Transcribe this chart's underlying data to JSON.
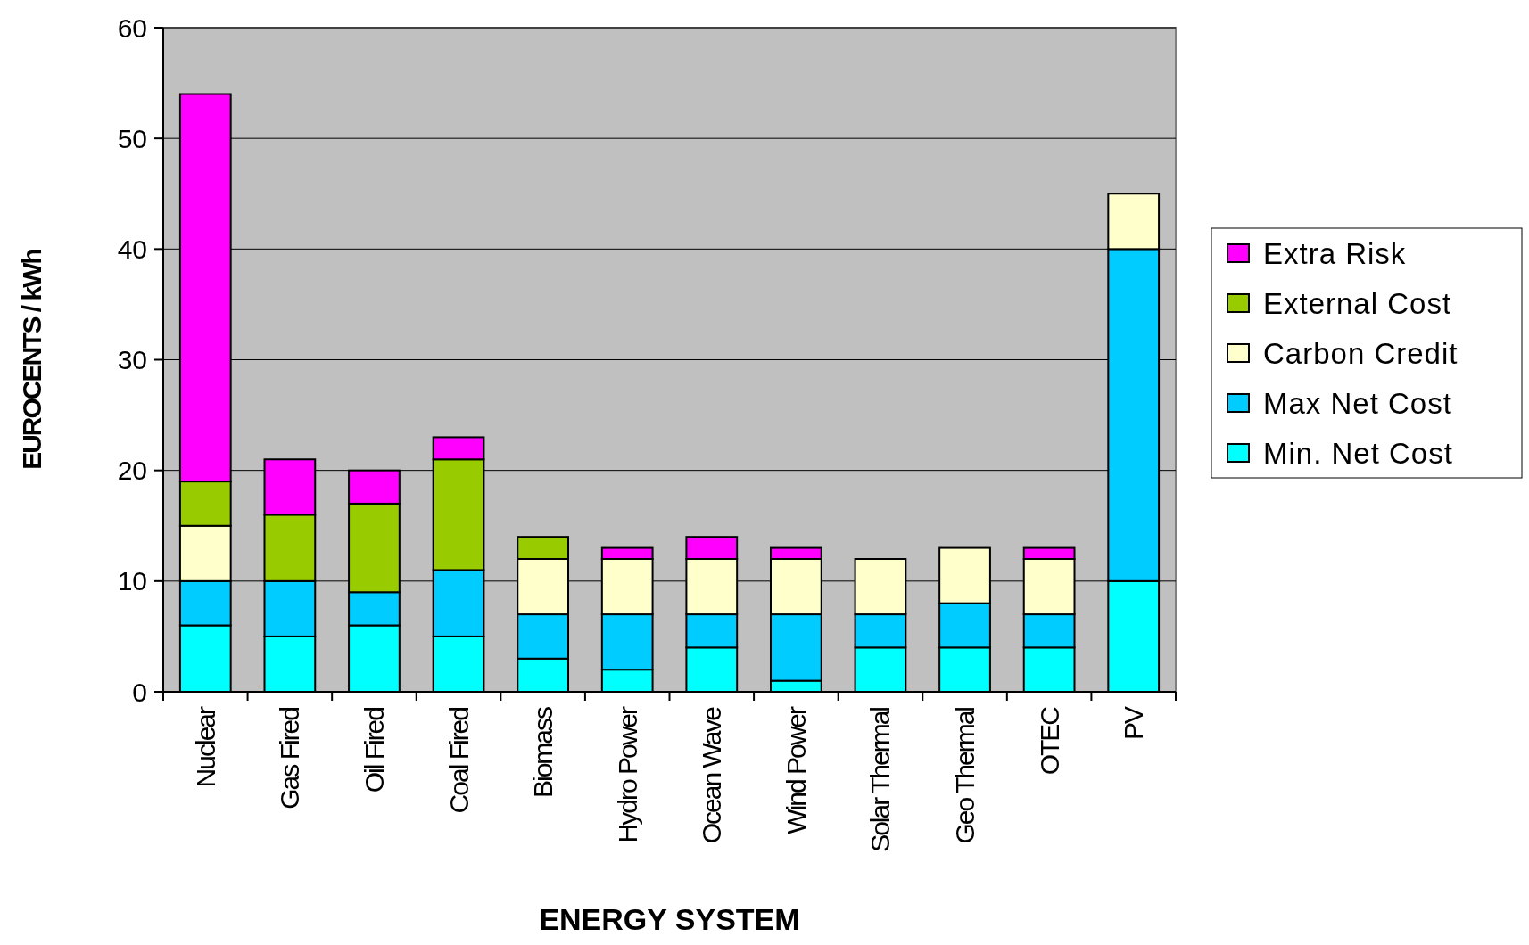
{
  "chart_data": {
    "type": "bar",
    "stacked": true,
    "xlabel": "ENERGY SYSTEM",
    "ylabel": "EUROCENTS / kWh",
    "categories": [
      "Nuclear",
      "Gas Fired",
      "Oil Fired",
      "Coal Fired",
      "Biomass",
      "Hydro Power",
      "Ocean Wave",
      "Wind Power",
      "Solar Thermal",
      "Geo Thermal",
      "OTEC",
      "PV"
    ],
    "series": [
      {
        "name": "Min. Net Cost",
        "color": "#00ffff",
        "values": [
          6,
          5,
          6,
          5,
          3,
          2,
          4,
          1,
          4,
          4,
          4,
          10
        ]
      },
      {
        "name": "Max Net Cost",
        "color": "#00ccff",
        "values": [
          4,
          5,
          3,
          6,
          4,
          5,
          3,
          6,
          3,
          4,
          3,
          30
        ]
      },
      {
        "name": "Carbon Credit",
        "color": "#ffffcc",
        "values": [
          5,
          null,
          null,
          null,
          5,
          5,
          5,
          5,
          5,
          5,
          5,
          5
        ]
      },
      {
        "name": "External Cost",
        "color": "#99cc00",
        "values": [
          4,
          6,
          8,
          10,
          2,
          null,
          null,
          null,
          null,
          null,
          null,
          null
        ]
      },
      {
        "name": "Extra Risk",
        "color": "#ff00ff",
        "values": [
          35,
          5,
          3,
          2,
          null,
          1,
          2,
          1,
          null,
          null,
          1,
          null
        ]
      }
    ],
    "ylim": [
      0,
      60
    ],
    "yticks": [
      0,
      10,
      20,
      30,
      40,
      50,
      60
    ],
    "grid": "y",
    "legend": "right"
  }
}
